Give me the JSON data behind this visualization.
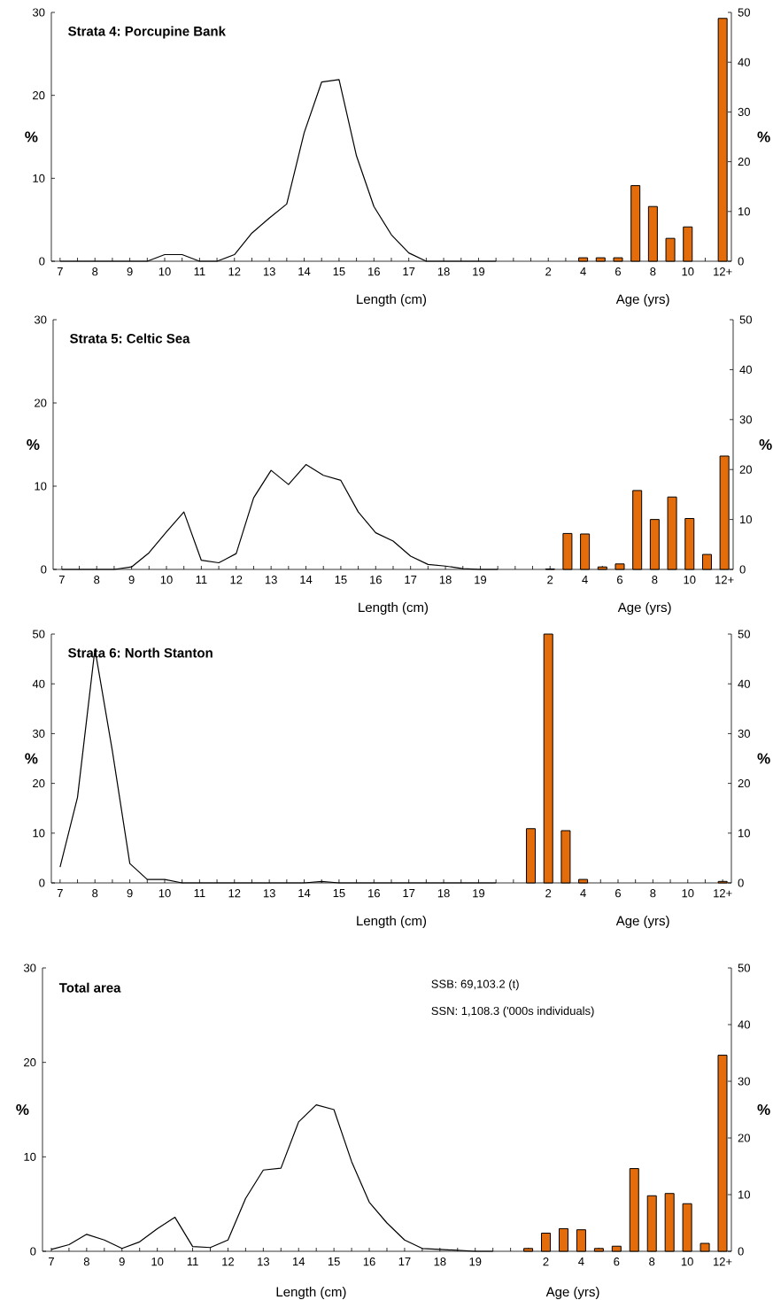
{
  "chart_data": [
    {
      "type": "line",
      "title": "Strata 4: Porcupine Bank",
      "xlabel": "Length (cm)",
      "ylabel": "%",
      "y2label": "%",
      "annotations": [
        "Age (yrs)"
      ],
      "categories": [
        "7",
        null,
        "8",
        null,
        "9",
        null,
        "10",
        null,
        "11",
        null,
        "12",
        null,
        "13",
        null,
        "14",
        null,
        "15",
        null,
        "16",
        null,
        "17",
        null,
        "18",
        null,
        "19",
        null,
        null,
        null,
        "2",
        null,
        "4",
        null,
        "6",
        null,
        "8",
        null,
        "10",
        null,
        "12+"
      ],
      "series": [
        {
          "color": "#000000",
          "values": [
            0,
            0,
            0,
            0,
            0,
            0,
            0.8,
            0.8,
            0,
            0,
            0.8,
            3.4,
            5.2,
            6.9,
            15.5,
            21.6,
            21.9,
            12.7,
            6.6,
            3.2,
            1.0,
            0,
            0,
            0,
            0,
            0,
            null,
            null,
            null,
            null,
            null,
            null,
            null,
            null,
            null,
            null,
            null,
            null,
            null
          ]
        },
        {
          "type": "bar",
          "axis": "y2",
          "color": "#e46c0a",
          "values": [
            null,
            null,
            null,
            null,
            null,
            null,
            null,
            null,
            null,
            null,
            null,
            null,
            null,
            null,
            null,
            null,
            null,
            null,
            null,
            null,
            null,
            null,
            null,
            null,
            null,
            null,
            null,
            null,
            null,
            null,
            0.7,
            0.7,
            0.7,
            15.2,
            11.0,
            4.6,
            6.9,
            null,
            48.8
          ]
        }
      ],
      "ylim": [
        0,
        30
      ],
      "yticks": [
        0,
        10,
        20,
        30
      ],
      "y2lim": [
        0,
        50
      ],
      "y2ticks": [
        0,
        10,
        20,
        30,
        40,
        50
      ]
    },
    {
      "type": "line",
      "title": "Strata 5: Celtic Sea",
      "xlabel": "Length (cm)",
      "ylabel": "%",
      "y2label": "%",
      "annotations": [
        "Age (yrs)"
      ],
      "categories": [
        "7",
        null,
        "8",
        null,
        "9",
        null,
        "10",
        null,
        "11",
        null,
        "12",
        null,
        "13",
        null,
        "14",
        null,
        "15",
        null,
        "16",
        null,
        "17",
        null,
        "18",
        null,
        "19",
        null,
        null,
        null,
        "2",
        null,
        "4",
        null,
        "6",
        null,
        "8",
        null,
        "10",
        null,
        "12+"
      ],
      "series": [
        {
          "color": "#000000",
          "values": [
            0,
            0,
            0,
            0,
            0.3,
            2.0,
            4.5,
            6.9,
            1.1,
            0.8,
            1.9,
            8.6,
            11.9,
            10.2,
            12.6,
            11.3,
            10.7,
            6.9,
            4.4,
            3.4,
            1.6,
            0.6,
            0.4,
            0.1,
            0,
            0,
            null,
            null,
            null,
            null,
            null,
            null,
            null,
            null,
            null,
            null,
            null,
            null,
            null
          ]
        },
        {
          "type": "bar",
          "axis": "y2",
          "color": "#e46c0a",
          "values": [
            null,
            null,
            null,
            null,
            null,
            null,
            null,
            null,
            null,
            null,
            null,
            null,
            null,
            null,
            null,
            null,
            null,
            null,
            null,
            null,
            null,
            null,
            null,
            null,
            null,
            null,
            null,
            null,
            0.1,
            7.2,
            7.1,
            0.5,
            1.1,
            15.8,
            10.0,
            14.5,
            10.2,
            3.0,
            22.7
          ]
        }
      ],
      "ylim": [
        0,
        30
      ],
      "yticks": [
        0,
        10,
        20,
        30
      ],
      "y2lim": [
        0,
        50
      ],
      "y2ticks": [
        0,
        10,
        20,
        30,
        40,
        50
      ]
    },
    {
      "type": "line",
      "title": "Strata 6: North Stanton",
      "xlabel": "Length (cm)",
      "ylabel": "%",
      "y2label": "%",
      "annotations": [
        "Age (yrs)"
      ],
      "categories": [
        "7",
        null,
        "8",
        null,
        "9",
        null,
        "10",
        null,
        "11",
        null,
        "12",
        null,
        "13",
        null,
        "14",
        null,
        "15",
        null,
        "16",
        null,
        "17",
        null,
        "18",
        null,
        "19",
        null,
        null,
        null,
        "2",
        null,
        "4",
        null,
        "6",
        null,
        "8",
        null,
        "10",
        null,
        "12+"
      ],
      "series": [
        {
          "color": "#000000",
          "values": [
            3.2,
            17.2,
            47,
            26.5,
            3.9,
            0.7,
            0.7,
            0,
            0,
            0,
            0,
            0,
            0,
            0,
            0,
            0.3,
            0,
            0,
            0,
            0,
            0,
            0,
            0,
            0,
            0,
            0,
            null,
            null,
            null,
            null,
            null,
            null,
            null,
            null,
            null,
            null,
            null,
            null,
            null
          ]
        },
        {
          "type": "bar",
          "axis": "y2",
          "color": "#e46c0a",
          "values": [
            null,
            null,
            null,
            null,
            null,
            null,
            null,
            null,
            null,
            null,
            null,
            null,
            null,
            null,
            null,
            null,
            null,
            null,
            null,
            null,
            null,
            null,
            null,
            null,
            null,
            null,
            null,
            10.9,
            50,
            10.5,
            0.7,
            null,
            null,
            null,
            null,
            null,
            null,
            null,
            0.3
          ]
        }
      ],
      "ylim": [
        0,
        50
      ],
      "yticks": [
        0,
        10,
        20,
        30,
        40,
        50
      ],
      "y2lim": [
        0,
        50
      ],
      "y2ticks": [
        0,
        10,
        20,
        30,
        40,
        50
      ]
    },
    {
      "type": "line",
      "title": "Total area",
      "xlabel": "Length (cm)",
      "ylabel": "%",
      "y2label": "%",
      "annotations": [
        "Age (yrs)",
        "SSB: 69,103.2 (t)",
        "SSN: 1,108.3 ('000s individuals)"
      ],
      "categories": [
        "7",
        null,
        "8",
        null,
        "9",
        null,
        "10",
        null,
        "11",
        null,
        "12",
        null,
        "13",
        null,
        "14",
        null,
        "15",
        null,
        "16",
        null,
        "17",
        null,
        "18",
        null,
        "19",
        null,
        null,
        null,
        "2",
        null,
        "4",
        null,
        "6",
        null,
        "8",
        null,
        "10",
        null,
        "12+"
      ],
      "series": [
        {
          "color": "#000000",
          "values": [
            0.2,
            0.7,
            1.8,
            1.2,
            0.3,
            1.0,
            2.4,
            3.6,
            0.5,
            0.4,
            1.2,
            5.6,
            8.6,
            8.8,
            13.7,
            15.5,
            15.0,
            9.5,
            5.2,
            3.0,
            1.2,
            0.3,
            0.2,
            0.1,
            0,
            0,
            null,
            null,
            null,
            null,
            null,
            null,
            null,
            null,
            null,
            null,
            null,
            null,
            null
          ]
        },
        {
          "type": "bar",
          "axis": "y2",
          "color": "#e46c0a",
          "values": [
            null,
            null,
            null,
            null,
            null,
            null,
            null,
            null,
            null,
            null,
            null,
            null,
            null,
            null,
            null,
            null,
            null,
            null,
            null,
            null,
            null,
            null,
            null,
            null,
            null,
            null,
            null,
            0.5,
            3.2,
            4.0,
            3.8,
            0.5,
            0.9,
            14.6,
            9.8,
            10.2,
            8.4,
            1.4,
            34.6
          ]
        }
      ],
      "ylim": [
        0,
        30
      ],
      "yticks": [
        0,
        10,
        20,
        30
      ],
      "y2lim": [
        0,
        50
      ],
      "y2ticks": [
        0,
        10,
        20,
        30,
        40,
        50
      ]
    }
  ]
}
